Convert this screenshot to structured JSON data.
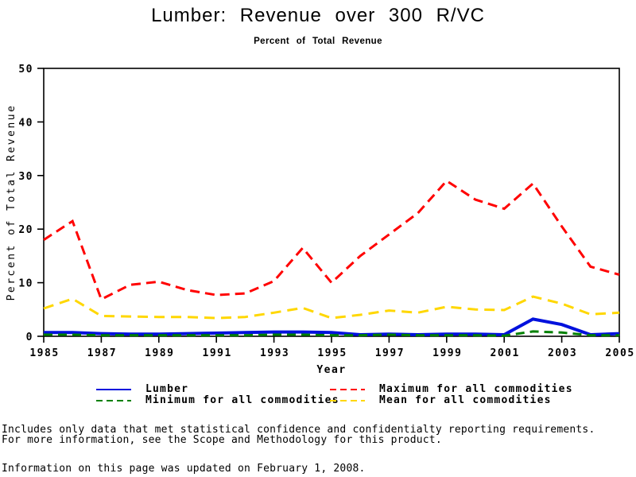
{
  "header": {
    "title": "Lumber: Revenue over 300 R/VC",
    "subtitle": "Percent of Total Revenue"
  },
  "chart_data": {
    "type": "line",
    "title": "Lumber: Revenue over 300 R/VC",
    "subtitle": "Percent of Total Revenue",
    "xlabel": "Year",
    "ylabel": "Percent of Total Revenue",
    "x_range": [
      1985,
      2005
    ],
    "ylim": [
      0,
      50
    ],
    "x_ticks": [
      1985,
      1987,
      1989,
      1991,
      1993,
      1995,
      1997,
      1999,
      2001,
      2003,
      2005
    ],
    "y_ticks": [
      0,
      10,
      20,
      30,
      40,
      50
    ],
    "grid": false,
    "legend_position": "bottom",
    "x": [
      1985,
      1986,
      1987,
      1988,
      1989,
      1990,
      1991,
      1992,
      1993,
      1994,
      1995,
      1996,
      1997,
      1998,
      1999,
      2000,
      2001,
      2002,
      2003,
      2004,
      2005
    ],
    "series": [
      {
        "name": "Maximum for all commodities",
        "color": "#ff0000",
        "style": "dashed",
        "dash": "12,7",
        "width": 3,
        "values": [
          18,
          21.5,
          6.9,
          9.6,
          10.2,
          8.6,
          7.7,
          8,
          10.3,
          16.5,
          10,
          15,
          19,
          23,
          29,
          25.5,
          23.8,
          28.5,
          20.5,
          13,
          11.5
        ]
      },
      {
        "name": "Mean for all commodities",
        "color": "#ffd700",
        "style": "dashed",
        "dash": "13,8",
        "width": 3,
        "values": [
          5.2,
          7,
          3.8,
          3.7,
          3.6,
          3.6,
          3.4,
          3.6,
          4.4,
          5.3,
          3.4,
          4,
          4.8,
          4.4,
          5.5,
          5,
          4.9,
          7.4,
          6.1,
          4.1,
          4.4
        ]
      },
      {
        "name": "Lumber",
        "color": "#0011dd",
        "style": "solid",
        "dash": "",
        "width": 4,
        "values": [
          0.7,
          0.7,
          0.5,
          0.4,
          0.4,
          0.5,
          0.6,
          0.7,
          0.8,
          0.8,
          0.7,
          0.3,
          0.4,
          0.3,
          0.4,
          0.4,
          0.3,
          3.2,
          2.2,
          0.3,
          0.5
        ]
      },
      {
        "name": "Minimum for all commodities",
        "color": "#008000",
        "style": "dashed",
        "dash": "11,7",
        "width": 3,
        "values": [
          0.3,
          0.3,
          0.2,
          0.2,
          0.2,
          0.2,
          0.2,
          0.2,
          0.3,
          0.3,
          0.2,
          0.2,
          0.3,
          0.2,
          0.2,
          0.2,
          0.1,
          0.9,
          0.7,
          0.2,
          0.2
        ]
      }
    ]
  },
  "footnotes": {
    "line1": "Includes only data that met statistical confidence and confidentialty reporting requirements.",
    "line2": "For more information, see the Scope and Methodology for this product.",
    "updated": "Information on this page was updated on February 1, 2008."
  }
}
